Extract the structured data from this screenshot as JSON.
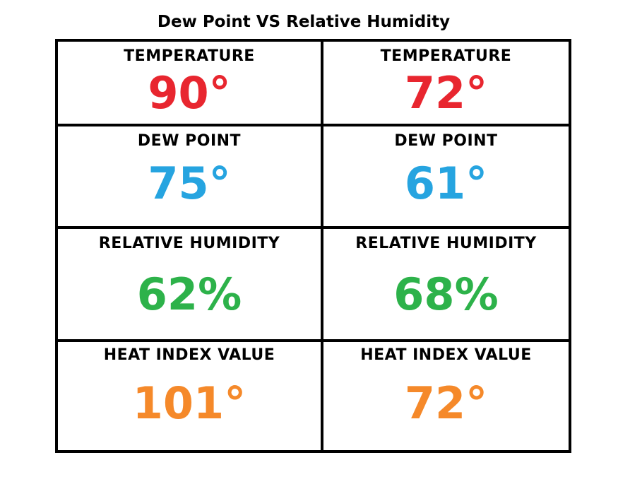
{
  "title": "Dew Point VS Relative Humidity",
  "colors": {
    "temperature": "#e8262f",
    "dew_point": "#26a4e0",
    "relative_humidity": "#2db24a",
    "heat_index": "#f5892a"
  },
  "left": {
    "temperature_label": "TEMPERATURE",
    "temperature_value": "90°",
    "dew_point_label": "DEW POINT",
    "dew_point_value": "75°",
    "humidity_label": "RELATIVE HUMIDITY",
    "humidity_value": "62%",
    "heat_index_label": "HEAT INDEX VALUE",
    "heat_index_value": "101°"
  },
  "right": {
    "temperature_label": "TEMPERATURE",
    "temperature_value": "72°",
    "dew_point_label": "DEW POINT",
    "dew_point_value": "61°",
    "humidity_label": "RELATIVE HUMIDITY",
    "humidity_value": "68%",
    "heat_index_label": "HEAT INDEX VALUE",
    "heat_index_value": "72°"
  }
}
